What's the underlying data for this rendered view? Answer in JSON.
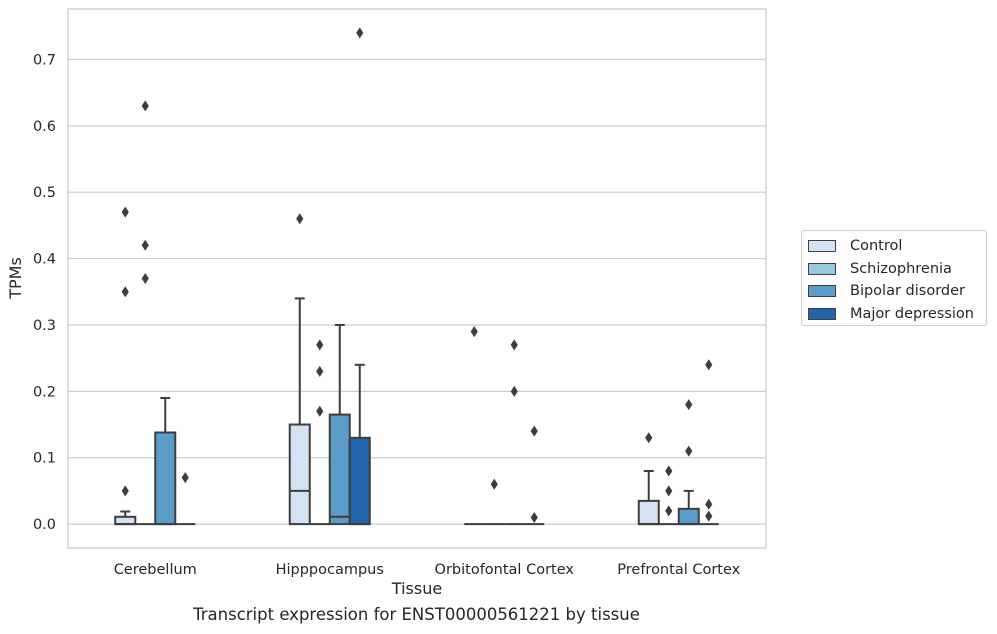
{
  "chart_data": {
    "type": "box",
    "xlabel": "Tissue",
    "ylabel": "TPMs",
    "caption": "Transcript expression for ENST00000561221 by tissue",
    "ylim": [
      -0.036,
      0.776
    ],
    "yticks": [
      "0.0",
      "0.1",
      "0.2",
      "0.3",
      "0.4",
      "0.5",
      "0.6",
      "0.7"
    ],
    "grid": true,
    "legend_placement": "right",
    "categories": [
      "Cerebellum",
      "Hipppocampus",
      "Orbitofontal Cortex",
      "Prefrontal Cortex"
    ],
    "series": [
      {
        "name": "Control",
        "color": "#d3e3f3"
      },
      {
        "name": "Schizophrenia",
        "color": "#9ac8e0"
      },
      {
        "name": "Bipolar disorder",
        "color": "#5b9dc9"
      },
      {
        "name": "Major depression",
        "color": "#2166ac"
      }
    ],
    "boxes": [
      [
        {
          "q1": 0,
          "median": 0,
          "q3": 0.011,
          "whisker_low": 0,
          "whisker_high": 0.019,
          "outliers": [
            0.05,
            0.35,
            0.47
          ]
        },
        {
          "q1": 0,
          "median": 0,
          "q3": 0,
          "whisker_low": 0,
          "whisker_high": 0,
          "outliers": [
            0.37,
            0.42,
            0.63
          ]
        },
        {
          "q1": 0,
          "median": 0,
          "q3": 0.138,
          "whisker_low": 0,
          "whisker_high": 0.19,
          "outliers": []
        },
        {
          "q1": 0,
          "median": 0,
          "q3": 0,
          "whisker_low": 0,
          "whisker_high": 0,
          "outliers": [
            0.07
          ]
        }
      ],
      [
        {
          "q1": 0,
          "median": 0.05,
          "q3": 0.15,
          "whisker_low": 0,
          "whisker_high": 0.34,
          "outliers": [
            0.46
          ]
        },
        {
          "q1": 0,
          "median": 0,
          "q3": 0,
          "whisker_low": 0,
          "whisker_high": 0,
          "outliers": [
            0.17,
            0.23,
            0.27
          ]
        },
        {
          "q1": 0,
          "median": 0.011,
          "q3": 0.165,
          "whisker_low": 0,
          "whisker_high": 0.3,
          "outliers": []
        },
        {
          "q1": 0,
          "median": 0,
          "q3": 0.13,
          "whisker_low": 0,
          "whisker_high": 0.24,
          "outliers": [
            0.74
          ]
        }
      ],
      [
        {
          "q1": 0,
          "median": 0,
          "q3": 0,
          "whisker_low": 0,
          "whisker_high": 0,
          "outliers": [
            0.29
          ]
        },
        {
          "q1": 0,
          "median": 0,
          "q3": 0,
          "whisker_low": 0,
          "whisker_high": 0,
          "outliers": [
            0.06
          ]
        },
        {
          "q1": 0,
          "median": 0,
          "q3": 0,
          "whisker_low": 0,
          "whisker_high": 0,
          "outliers": [
            0.2,
            0.27
          ]
        },
        {
          "q1": 0,
          "median": 0,
          "q3": 0,
          "whisker_low": 0,
          "whisker_high": 0,
          "outliers": [
            0.01,
            0.14
          ]
        }
      ],
      [
        {
          "q1": 0,
          "median": 0,
          "q3": 0.035,
          "whisker_low": 0,
          "whisker_high": 0.08,
          "outliers": [
            0.13
          ]
        },
        {
          "q1": 0,
          "median": 0,
          "q3": 0,
          "whisker_low": 0,
          "whisker_high": 0,
          "outliers": [
            0.02,
            0.05,
            0.08
          ]
        },
        {
          "q1": 0,
          "median": 0,
          "q3": 0.023,
          "whisker_low": 0,
          "whisker_high": 0.05,
          "outliers": [
            0.11,
            0.18
          ]
        },
        {
          "q1": 0,
          "median": 0,
          "q3": 0,
          "whisker_low": 0,
          "whisker_high": 0,
          "outliers": [
            0.012,
            0.03,
            0.24
          ]
        }
      ]
    ]
  }
}
